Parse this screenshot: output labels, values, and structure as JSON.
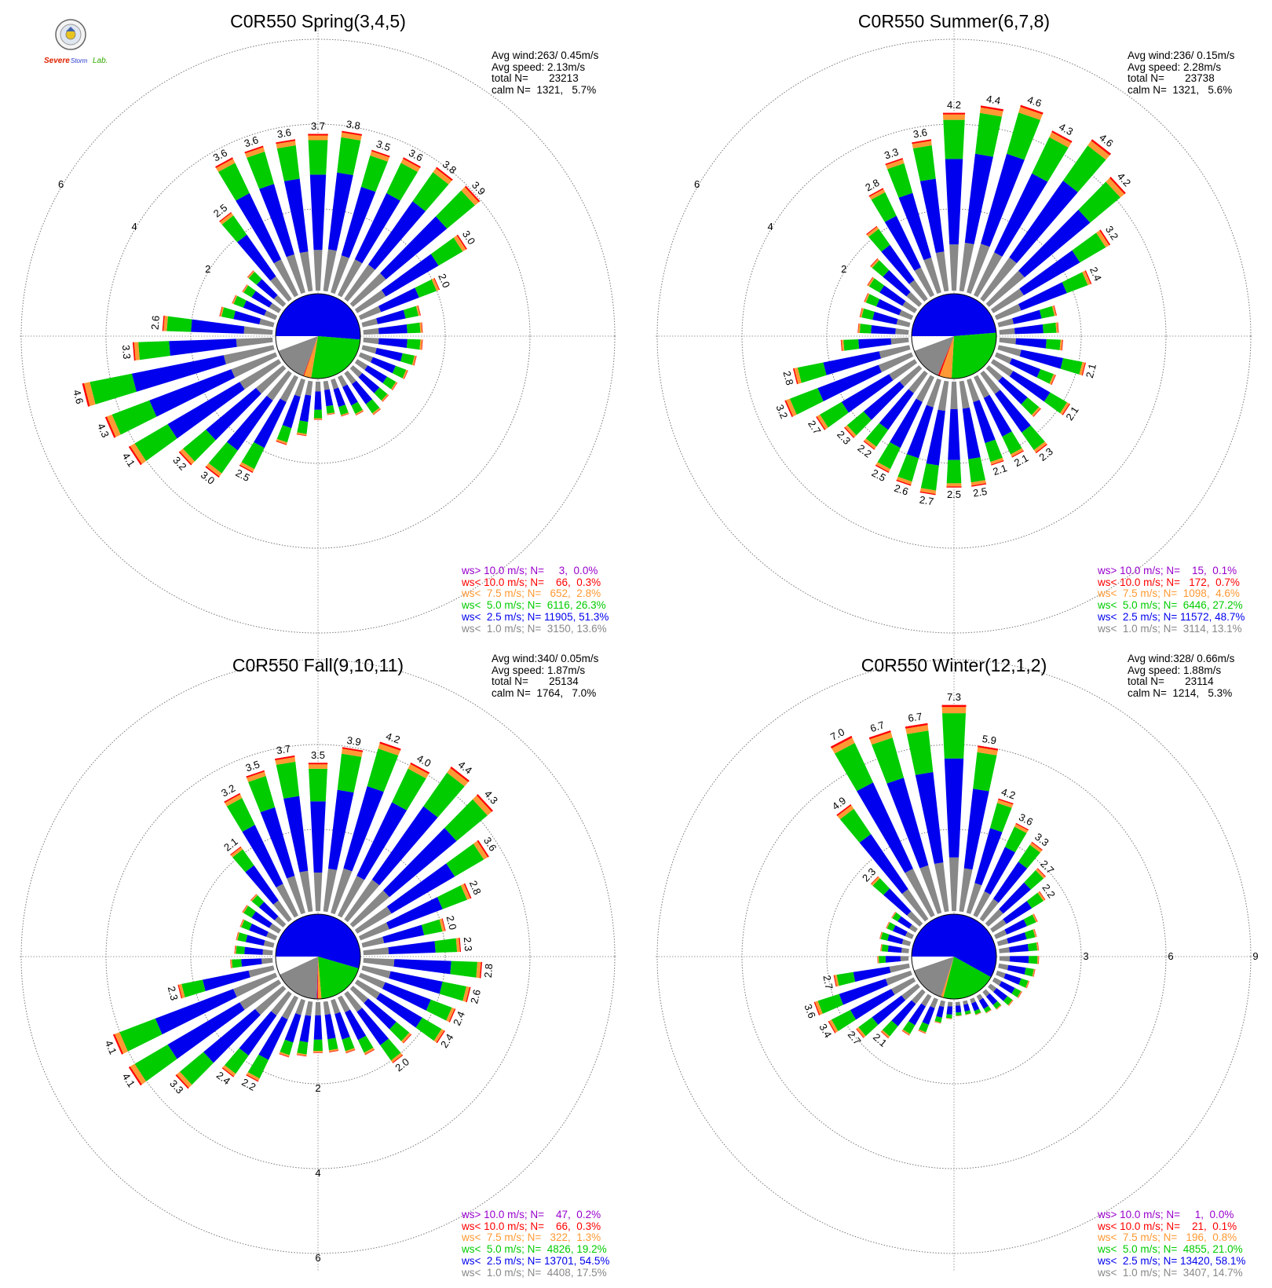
{
  "palette": {
    "calm": "#ffffff",
    "lt1": "#888888",
    "lt2_5": "#0000ee",
    "lt5": "#00cc00",
    "lt7_5": "#ff9933",
    "lt10": "#ff0000",
    "gt10": "#9900cc"
  },
  "legend_labels": {
    "gt10": "ws> 10.0 m/s; N=",
    "lt10": "ws< 10.0 m/s; N=",
    "lt7_5": "ws<  7.5 m/s; N=",
    "lt5": "ws<  5.0 m/s; N=",
    "lt2_5": "ws<  2.5 m/s; N=",
    "lt1": "ws<  1.0 m/s; N="
  },
  "stat_labels": {
    "avg_wind": "Avg wind:",
    "avg_speed": "Avg speed:",
    "total": "total N=",
    "calm": "calm N="
  },
  "logo": {
    "line1": "Severe",
    "line2": "Storm",
    "line3": "Lab."
  },
  "chart_data": [
    {
      "type": "wind-rose",
      "title": "C0R550 Spring(3,4,5)",
      "stats": {
        "avg_wind": "263/ 0.45m/s",
        "avg_speed": "2.13m/s",
        "total_n": "23213",
        "calm_n": "1321,",
        "calm_pct": "5.7%"
      },
      "ring_labels": [
        "2",
        "4",
        "6"
      ],
      "legend": [
        {
          "key": "gt10",
          "n": "3,",
          "pct": "0.0%"
        },
        {
          "key": "lt10",
          "n": "66,",
          "pct": "0.3%"
        },
        {
          "key": "lt7_5",
          "n": "652,",
          "pct": "2.8%"
        },
        {
          "key": "lt5",
          "n": "6116,",
          "pct": "26.3%"
        },
        {
          "key": "lt2_5",
          "n": "11905,",
          "pct": "51.3%"
        },
        {
          "key": "lt1",
          "n": "3150,",
          "pct": "13.6%"
        }
      ],
      "inner_pie": [
        {
          "key": "lt2_5",
          "pct": 51.3
        },
        {
          "key": "lt5",
          "pct": 26.3
        },
        {
          "key": "lt7_5",
          "pct": 2.8
        },
        {
          "key": "lt10",
          "pct": 0.3
        },
        {
          "key": "lt1",
          "pct": 13.6
        },
        {
          "key": "calm",
          "pct": 5.7
        }
      ],
      "totals": [
        3.7,
        3.8,
        3.5,
        3.6,
        3.8,
        3.9,
        3.0,
        2.0,
        1.4,
        1.4,
        1.4,
        1.3,
        1.2,
        1.1,
        1.1,
        1.2,
        1.0,
        0.9,
        0.8,
        0.9,
        1.3,
        1.6,
        2.5,
        3.0,
        3.2,
        4.1,
        4.3,
        4.6,
        3.3,
        2.6,
        1.3,
        1.1,
        1.0,
        1.1,
        2.5,
        3.6,
        3.6,
        3.6
      ],
      "bar_labels": [
        "3.7",
        "3.8",
        "3.5",
        "3.6",
        "3.8",
        "3.9",
        "3.0",
        "2.0",
        "",
        "",
        "",
        "",
        "",
        "",
        "",
        "",
        "",
        "",
        "",
        "",
        "",
        "",
        "2.5",
        "3.0",
        "3.2",
        "4.1",
        "4.3",
        "4.6",
        "3.3",
        "2.6",
        "",
        "",
        "",
        "",
        "2.5",
        "3.6",
        "3.6",
        "3.6"
      ]
    },
    {
      "type": "wind-rose",
      "title": "C0R550 Summer(6,7,8)",
      "stats": {
        "avg_wind": "236/ 0.15m/s",
        "avg_speed": "2.28m/s",
        "total_n": "23738",
        "calm_n": "1321,",
        "calm_pct": "5.6%"
      },
      "ring_labels": [
        "2",
        "4",
        "6"
      ],
      "legend": [
        {
          "key": "gt10",
          "n": "15,",
          "pct": "0.1%"
        },
        {
          "key": "lt10",
          "n": "172,",
          "pct": "0.7%"
        },
        {
          "key": "lt7_5",
          "n": "1098,",
          "pct": "4.6%"
        },
        {
          "key": "lt5",
          "n": "6446,",
          "pct": "27.2%"
        },
        {
          "key": "lt2_5",
          "n": "11572,",
          "pct": "48.7%"
        },
        {
          "key": "lt1",
          "n": "3114,",
          "pct": "13.1%"
        }
      ],
      "inner_pie": [
        {
          "key": "lt2_5",
          "pct": 48.7
        },
        {
          "key": "lt5",
          "pct": 27.2
        },
        {
          "key": "lt7_5",
          "pct": 4.6
        },
        {
          "key": "lt10",
          "pct": 0.7
        },
        {
          "key": "lt1",
          "pct": 13.1
        },
        {
          "key": "calm",
          "pct": 5.6
        }
      ],
      "totals": [
        4.2,
        4.4,
        4.6,
        4.3,
        4.6,
        4.2,
        3.2,
        2.4,
        1.4,
        1.4,
        1.5,
        2.1,
        1.5,
        2.1,
        1.6,
        2.3,
        2.1,
        2.1,
        2.5,
        2.5,
        2.7,
        2.6,
        2.5,
        2.2,
        2.3,
        2.7,
        3.2,
        2.8,
        1.6,
        1.2,
        1.2,
        1.2,
        1.3,
        1.5,
        2.1,
        2.8,
        3.3,
        3.6
      ],
      "bar_labels": [
        "4.2",
        "4.4",
        "4.6",
        "4.3",
        "4.6",
        "4.2",
        "3.2",
        "2.4",
        "",
        "",
        "",
        "2.1",
        "",
        "2.1",
        "",
        "2.3",
        "2.1",
        "2.1",
        "2.5",
        "2.5",
        "2.7",
        "2.6",
        "2.5",
        "2.2",
        "2.3",
        "2.7",
        "3.2",
        "2.8",
        "",
        "",
        "",
        "",
        "",
        "",
        "",
        "2.8",
        "3.3",
        "3.6"
      ]
    },
    {
      "type": "wind-rose",
      "title": "C0R550 Fall(9,10,11)",
      "stats": {
        "avg_wind": "340/ 0.05m/s",
        "avg_speed": "1.87m/s",
        "total_n": "25134",
        "calm_n": "1764,",
        "calm_pct": "7.0%"
      },
      "ring_labels": [
        "2",
        "4",
        "6"
      ],
      "legend": [
        {
          "key": "gt10",
          "n": "47,",
          "pct": "0.2%"
        },
        {
          "key": "lt10",
          "n": "66,",
          "pct": "0.3%"
        },
        {
          "key": "lt7_5",
          "n": "322,",
          "pct": "1.3%"
        },
        {
          "key": "lt5",
          "n": "4826,",
          "pct": "19.2%"
        },
        {
          "key": "lt2_5",
          "n": "13701,",
          "pct": "54.5%"
        },
        {
          "key": "lt1",
          "n": "4408,",
          "pct": "17.5%"
        }
      ],
      "inner_pie": [
        {
          "key": "lt2_5",
          "pct": 54.5
        },
        {
          "key": "lt5",
          "pct": 19.2
        },
        {
          "key": "lt7_5",
          "pct": 1.3
        },
        {
          "key": "lt10",
          "pct": 0.3
        },
        {
          "key": "gt10",
          "pct": 0.2
        },
        {
          "key": "lt1",
          "pct": 17.5
        },
        {
          "key": "calm",
          "pct": 7.0
        }
      ],
      "totals": [
        3.5,
        3.9,
        4.2,
        4.0,
        4.4,
        4.3,
        3.6,
        2.8,
        2.0,
        2.3,
        2.8,
        2.6,
        2.4,
        2.4,
        1.8,
        2.0,
        1.5,
        1.3,
        1.2,
        1.2,
        1.3,
        1.4,
        2.2,
        2.4,
        3.3,
        4.1,
        4.1,
        2.3,
        1.0,
        0.9,
        0.9,
        0.9,
        1.0,
        1.0,
        2.1,
        3.2,
        3.5,
        3.7
      ],
      "bar_labels": [
        "3.5",
        "3.9",
        "4.2",
        "4.0",
        "4.4",
        "4.3",
        "3.6",
        "2.8",
        "2.0",
        "2.3",
        "2.8",
        "2.6",
        "2.4",
        "2.4",
        "",
        "2.0",
        "",
        "",
        "",
        "",
        "",
        "",
        "2.2",
        "2.4",
        "3.3",
        "4.1",
        "4.1",
        "2.3",
        "",
        "",
        "",
        "",
        "",
        "",
        "2.1",
        "3.2",
        "3.5",
        "3.7"
      ]
    },
    {
      "type": "wind-rose",
      "title": "C0R550 Winter(12,1,2)",
      "stats": {
        "avg_wind": "328/ 0.66m/s",
        "avg_speed": "1.88m/s",
        "total_n": "23114",
        "calm_n": "1214,",
        "calm_pct": "5.3%"
      },
      "ring_labels": [
        "3",
        "6",
        "9"
      ],
      "legend": [
        {
          "key": "gt10",
          "n": "1,",
          "pct": "0.0%"
        },
        {
          "key": "lt10",
          "n": "21,",
          "pct": "0.1%"
        },
        {
          "key": "lt7_5",
          "n": "196,",
          "pct": "0.8%"
        },
        {
          "key": "lt5",
          "n": "4855,",
          "pct": "21.0%"
        },
        {
          "key": "lt2_5",
          "n": "13420,",
          "pct": "58.1%"
        },
        {
          "key": "lt1",
          "n": "3407,",
          "pct": "14.7%"
        }
      ],
      "inner_pie": [
        {
          "key": "lt2_5",
          "pct": 58.1
        },
        {
          "key": "lt5",
          "pct": 21.0
        },
        {
          "key": "lt7_5",
          "pct": 0.8
        },
        {
          "key": "lt10",
          "pct": 0.1
        },
        {
          "key": "lt1",
          "pct": 14.7
        },
        {
          "key": "calm",
          "pct": 5.3
        }
      ],
      "totals": [
        7.3,
        5.9,
        4.2,
        3.6,
        3.3,
        2.7,
        2.2,
        1.6,
        1.4,
        1.4,
        1.4,
        1.3,
        1.2,
        1.1,
        1.0,
        0.8,
        0.7,
        0.6,
        0.5,
        0.5,
        0.6,
        0.8,
        1.3,
        1.6,
        2.1,
        2.7,
        3.4,
        3.6,
        2.7,
        1.1,
        1.0,
        1.1,
        1.0,
        1.0,
        2.3,
        4.9,
        7.0,
        6.7,
        6.7
      ],
      "bar_labels": [
        "7.3",
        "5.9",
        "4.2",
        "3.6",
        "3.3",
        "2.7",
        "2.2",
        "",
        "",
        "",
        "",
        "",
        "",
        "",
        "",
        "",
        "",
        "",
        "",
        "",
        "",
        "",
        "",
        "",
        "2.1",
        "2.7",
        "3.4",
        "3.6",
        "2.7",
        "",
        "",
        "",
        "",
        "",
        "2.3",
        "4.9",
        "7.0",
        "6.7",
        "6.7"
      ]
    }
  ]
}
